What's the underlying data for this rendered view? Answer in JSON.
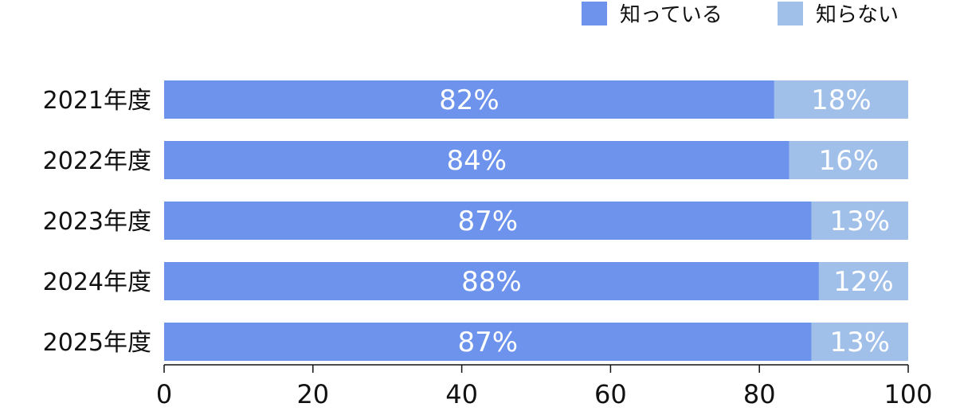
{
  "chart_data": {
    "type": "bar",
    "orientation": "horizontal",
    "stacked": true,
    "categories": [
      "2021年度",
      "2022年度",
      "2023年度",
      "2024年度",
      "2025年度"
    ],
    "series": [
      {
        "name": "知っている",
        "values": [
          82,
          84,
          87,
          88,
          87
        ],
        "labels": [
          "82%",
          "84%",
          "87%",
          "88%",
          "87%"
        ],
        "color": "#6d93ed"
      },
      {
        "name": "知らない",
        "values": [
          18,
          16,
          13,
          12,
          13
        ],
        "labels": [
          "18%",
          "16%",
          "13%",
          "12%",
          "13%"
        ],
        "color": "#a0bfe9"
      }
    ],
    "xlim": [
      0,
      100
    ],
    "xticks": [
      0,
      20,
      40,
      60,
      80,
      100
    ],
    "xtick_labels": [
      "0",
      "20",
      "40",
      "60",
      "80",
      "100"
    ],
    "legend_position": "top-right",
    "grid": false
  }
}
